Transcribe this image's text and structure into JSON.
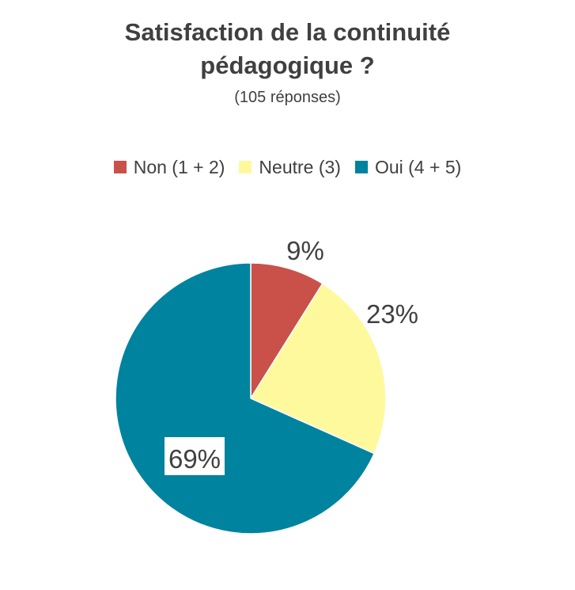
{
  "chart_data": {
    "type": "pie",
    "title": [
      "Satisfaction de la continuité",
      "pédagogique ?"
    ],
    "subtitle": "(105 réponses)",
    "legend_position": "top",
    "categories": [
      "Non (1 + 2)",
      "Neutre (3)",
      "Oui (4 + 5)"
    ],
    "values": [
      9,
      23,
      69
    ],
    "data_labels": [
      "9%",
      "23%",
      "69%"
    ],
    "colors": [
      "#C9514A",
      "#FFF99E",
      "#00839E"
    ]
  }
}
